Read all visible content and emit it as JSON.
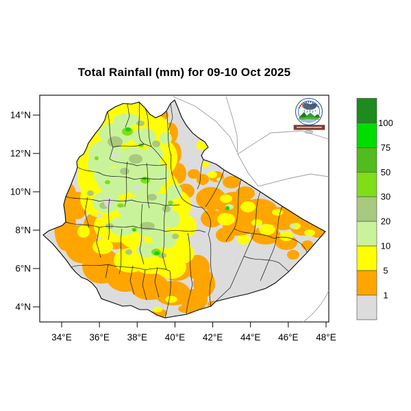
{
  "title": "Total Rainfall (mm) for 09-10 Oct 2025",
  "map": {
    "x_axis_ticks": [
      "34°E",
      "36°E",
      "38°E",
      "40°E",
      "42°E",
      "44°E",
      "46°E",
      "48°E"
    ],
    "y_axis_ticks": [
      "14°N",
      "12°N",
      "10°N",
      "8°N",
      "6°N",
      "4°N"
    ],
    "logo": "ethiopian-meteorology-institute-logo"
  },
  "legend": {
    "tick_labels": [
      "100",
      "75",
      "50",
      "30",
      "20",
      "10",
      "5",
      "1"
    ],
    "band_colors_top_to_bottom": [
      "#1E8B1E",
      "#00DD00",
      "#52BB1D",
      "#7EDE17",
      "#A9C97E",
      "#C9F39B",
      "#FFFF00",
      "#FFA500",
      "#DCDCDC"
    ]
  },
  "chart_data": {
    "type": "heatmap",
    "title": "Total Rainfall (mm) for 09-10 Oct 2025",
    "region_shown": "Ethiopia with administrative zone boundaries; neighbouring coastlines drawn in thin gray",
    "x_axis": {
      "ticks": [
        "34°E",
        "36°E",
        "38°E",
        "40°E",
        "42°E",
        "44°E",
        "46°E",
        "48°E"
      ],
      "range_deg_east": [
        32.8,
        48.2
      ]
    },
    "y_axis": {
      "ticks": [
        "14°N",
        "12°N",
        "10°N",
        "8°N",
        "6°N",
        "4°N"
      ],
      "range_deg_north": [
        3.2,
        15.1
      ]
    },
    "colorbar_breaks_mm": [
      1,
      5,
      10,
      20,
      30,
      50,
      75,
      100
    ],
    "colorbar_colors_low_to_high": [
      "#DCDCDC",
      "#FFA500",
      "#FFFF00",
      "#C9F39B",
      "#A9C97E",
      "#7EDE17",
      "#52BB1D",
      "#00DD00",
      "#1E8B1E"
    ],
    "pattern_summary": "Western and central highlands received ~5-30mm (yellow and pale green) with scattered 30-75mm green patches; northern Tigray yellow with orange fringes; Afar and eastern/southern lowlands mostly below 1mm (gray) crossed by 1-5mm orange bands with 5-10mm yellow patches over the Somali region; orange band along the southwest lowlands."
  }
}
